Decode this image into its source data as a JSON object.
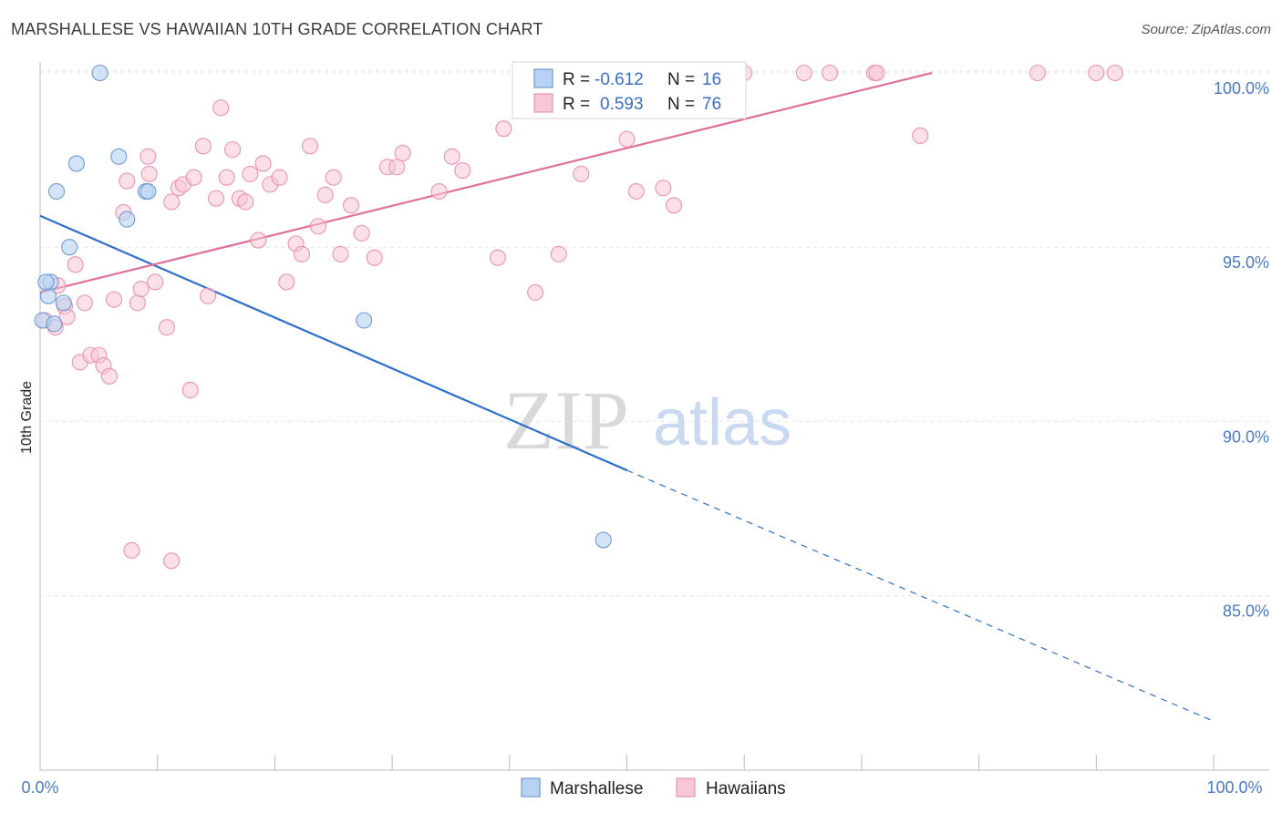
{
  "title": "MARSHALLESE VS HAWAIIAN 10TH GRADE CORRELATION CHART",
  "source": "Source: ZipAtlas.com",
  "watermark": {
    "zip": "ZIP",
    "atlas": "atlas"
  },
  "colors": {
    "marshallese_fill": "#b7d2f2",
    "marshallese_stroke": "#6e9bd4",
    "marshallese_line": "#2f6fcc",
    "hawaiian_fill": "#f7c7d6",
    "hawaiian_stroke": "#e994b1",
    "hawaiian_line": "#e07099",
    "grid": "#e6e6e6",
    "tick_label": "#4a7bc4"
  },
  "stats": {
    "r_label": "R =",
    "n_label": "N =",
    "marshallese": {
      "r": "-0.612",
      "n": "16"
    },
    "hawaiian": {
      "r": "0.593",
      "n": "76"
    }
  },
  "chart_data": {
    "type": "scatter",
    "title": "MARSHALLESE VS HAWAIIAN 10TH GRADE CORRELATION CHART",
    "xlabel": "",
    "ylabel": "10th Grade",
    "xlim": [
      0,
      100
    ],
    "ylim": [
      80.5,
      100.8
    ],
    "y_ticks": [
      85,
      90,
      95,
      100
    ],
    "y_tick_labels": [
      "85.0%",
      "90.0%",
      "95.0%",
      "100.0%"
    ],
    "x_tick_labels": [
      "0.0%",
      "100.0%"
    ],
    "grid": true,
    "legend_position": "bottom-center",
    "series": [
      {
        "name": "Marshallese",
        "points": [
          [
            0.2,
            92.9
          ],
          [
            1.2,
            92.8
          ],
          [
            0.9,
            94.0
          ],
          [
            0.7,
            93.6
          ],
          [
            2.0,
            93.4
          ],
          [
            2.5,
            95.0
          ],
          [
            1.4,
            96.6
          ],
          [
            3.1,
            97.4
          ],
          [
            5.1,
            100.0
          ],
          [
            6.7,
            97.6
          ],
          [
            7.4,
            95.8
          ],
          [
            9.0,
            96.6
          ],
          [
            9.2,
            96.6
          ],
          [
            27.6,
            92.9
          ],
          [
            48.0,
            86.6
          ],
          [
            0.5,
            94.0
          ]
        ],
        "trend": {
          "x0": 0,
          "y0": 95.9,
          "x1": 50,
          "y1": 88.6,
          "dashed_to_x": 100,
          "dashed_to_y": 81.4
        }
      },
      {
        "name": "Hawaiians",
        "points": [
          [
            0.4,
            92.9
          ],
          [
            1.3,
            92.7
          ],
          [
            1.5,
            93.9
          ],
          [
            2.1,
            93.3
          ],
          [
            2.3,
            93.0
          ],
          [
            3.0,
            94.5
          ],
          [
            3.4,
            91.7
          ],
          [
            3.8,
            93.4
          ],
          [
            4.3,
            91.9
          ],
          [
            5.0,
            91.9
          ],
          [
            5.4,
            91.6
          ],
          [
            5.9,
            91.3
          ],
          [
            6.3,
            93.5
          ],
          [
            7.1,
            96.0
          ],
          [
            7.4,
            96.9
          ],
          [
            7.8,
            86.3
          ],
          [
            8.3,
            93.4
          ],
          [
            8.6,
            93.8
          ],
          [
            9.3,
            97.1
          ],
          [
            9.8,
            94.0
          ],
          [
            10.8,
            92.7
          ],
          [
            11.2,
            96.3
          ],
          [
            11.8,
            96.7
          ],
          [
            12.2,
            96.8
          ],
          [
            12.8,
            90.9
          ],
          [
            13.1,
            97.0
          ],
          [
            13.9,
            97.9
          ],
          [
            14.3,
            93.6
          ],
          [
            15.0,
            96.4
          ],
          [
            15.4,
            99.0
          ],
          [
            15.9,
            97.0
          ],
          [
            16.4,
            97.8
          ],
          [
            17.0,
            96.4
          ],
          [
            17.5,
            96.3
          ],
          [
            17.9,
            97.1
          ],
          [
            18.6,
            95.2
          ],
          [
            19.0,
            97.4
          ],
          [
            19.6,
            96.8
          ],
          [
            20.4,
            97.0
          ],
          [
            21.0,
            94.0
          ],
          [
            21.8,
            95.1
          ],
          [
            22.3,
            94.8
          ],
          [
            23.0,
            97.9
          ],
          [
            23.7,
            95.6
          ],
          [
            24.3,
            96.5
          ],
          [
            25.0,
            97.0
          ],
          [
            25.6,
            94.8
          ],
          [
            26.5,
            96.2
          ],
          [
            27.4,
            95.4
          ],
          [
            28.5,
            94.7
          ],
          [
            29.6,
            97.3
          ],
          [
            30.4,
            97.3
          ],
          [
            30.9,
            97.7
          ],
          [
            34.0,
            96.6
          ],
          [
            35.1,
            97.6
          ],
          [
            36.0,
            97.2
          ],
          [
            39.0,
            94.7
          ],
          [
            39.5,
            98.4
          ],
          [
            42.2,
            93.7
          ],
          [
            44.2,
            94.8
          ],
          [
            46.1,
            97.1
          ],
          [
            50.0,
            98.1
          ],
          [
            50.8,
            96.6
          ],
          [
            53.1,
            96.7
          ],
          [
            54.0,
            96.2
          ],
          [
            60.0,
            100.0
          ],
          [
            65.1,
            100.0
          ],
          [
            67.3,
            100.0
          ],
          [
            71.1,
            100.0
          ],
          [
            71.3,
            100.0
          ],
          [
            91.6,
            100.0
          ],
          [
            75.0,
            98.2
          ],
          [
            85.0,
            100.0
          ],
          [
            90.0,
            100.0
          ],
          [
            11.2,
            86.0
          ],
          [
            9.2,
            97.6
          ]
        ],
        "trend": {
          "x0": 0,
          "y0": 93.7,
          "x1": 76,
          "y1": 100.0
        }
      }
    ]
  }
}
